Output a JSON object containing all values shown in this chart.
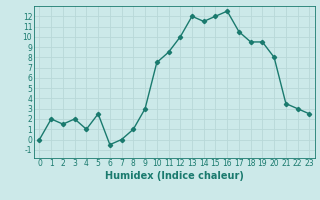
{
  "x": [
    0,
    1,
    2,
    3,
    4,
    5,
    6,
    7,
    8,
    9,
    10,
    11,
    12,
    13,
    14,
    15,
    16,
    17,
    18,
    19,
    20,
    21,
    22,
    23
  ],
  "y": [
    0,
    2,
    1.5,
    2,
    1,
    2.5,
    -0.5,
    0,
    1,
    3,
    7.5,
    8.5,
    10,
    12,
    11.5,
    12,
    12.5,
    10.5,
    9.5,
    9.5,
    8,
    3.5,
    3,
    2.5
  ],
  "line_color": "#1a7a6e",
  "marker": "D",
  "marker_size": 2.2,
  "bg_color": "#cce9e9",
  "grid_color": "#b8d8d8",
  "xlabel": "Humidex (Indice chaleur)",
  "xlim": [
    -0.5,
    23.5
  ],
  "ylim": [
    -1.8,
    13.0
  ],
  "yticks": [
    -1,
    0,
    1,
    2,
    3,
    4,
    5,
    6,
    7,
    8,
    9,
    10,
    11,
    12
  ],
  "xticks": [
    0,
    1,
    2,
    3,
    4,
    5,
    6,
    7,
    8,
    9,
    10,
    11,
    12,
    13,
    14,
    15,
    16,
    17,
    18,
    19,
    20,
    21,
    22,
    23
  ],
  "tick_label_fontsize": 5.5,
  "xlabel_fontsize": 7.0,
  "line_width": 1.0
}
